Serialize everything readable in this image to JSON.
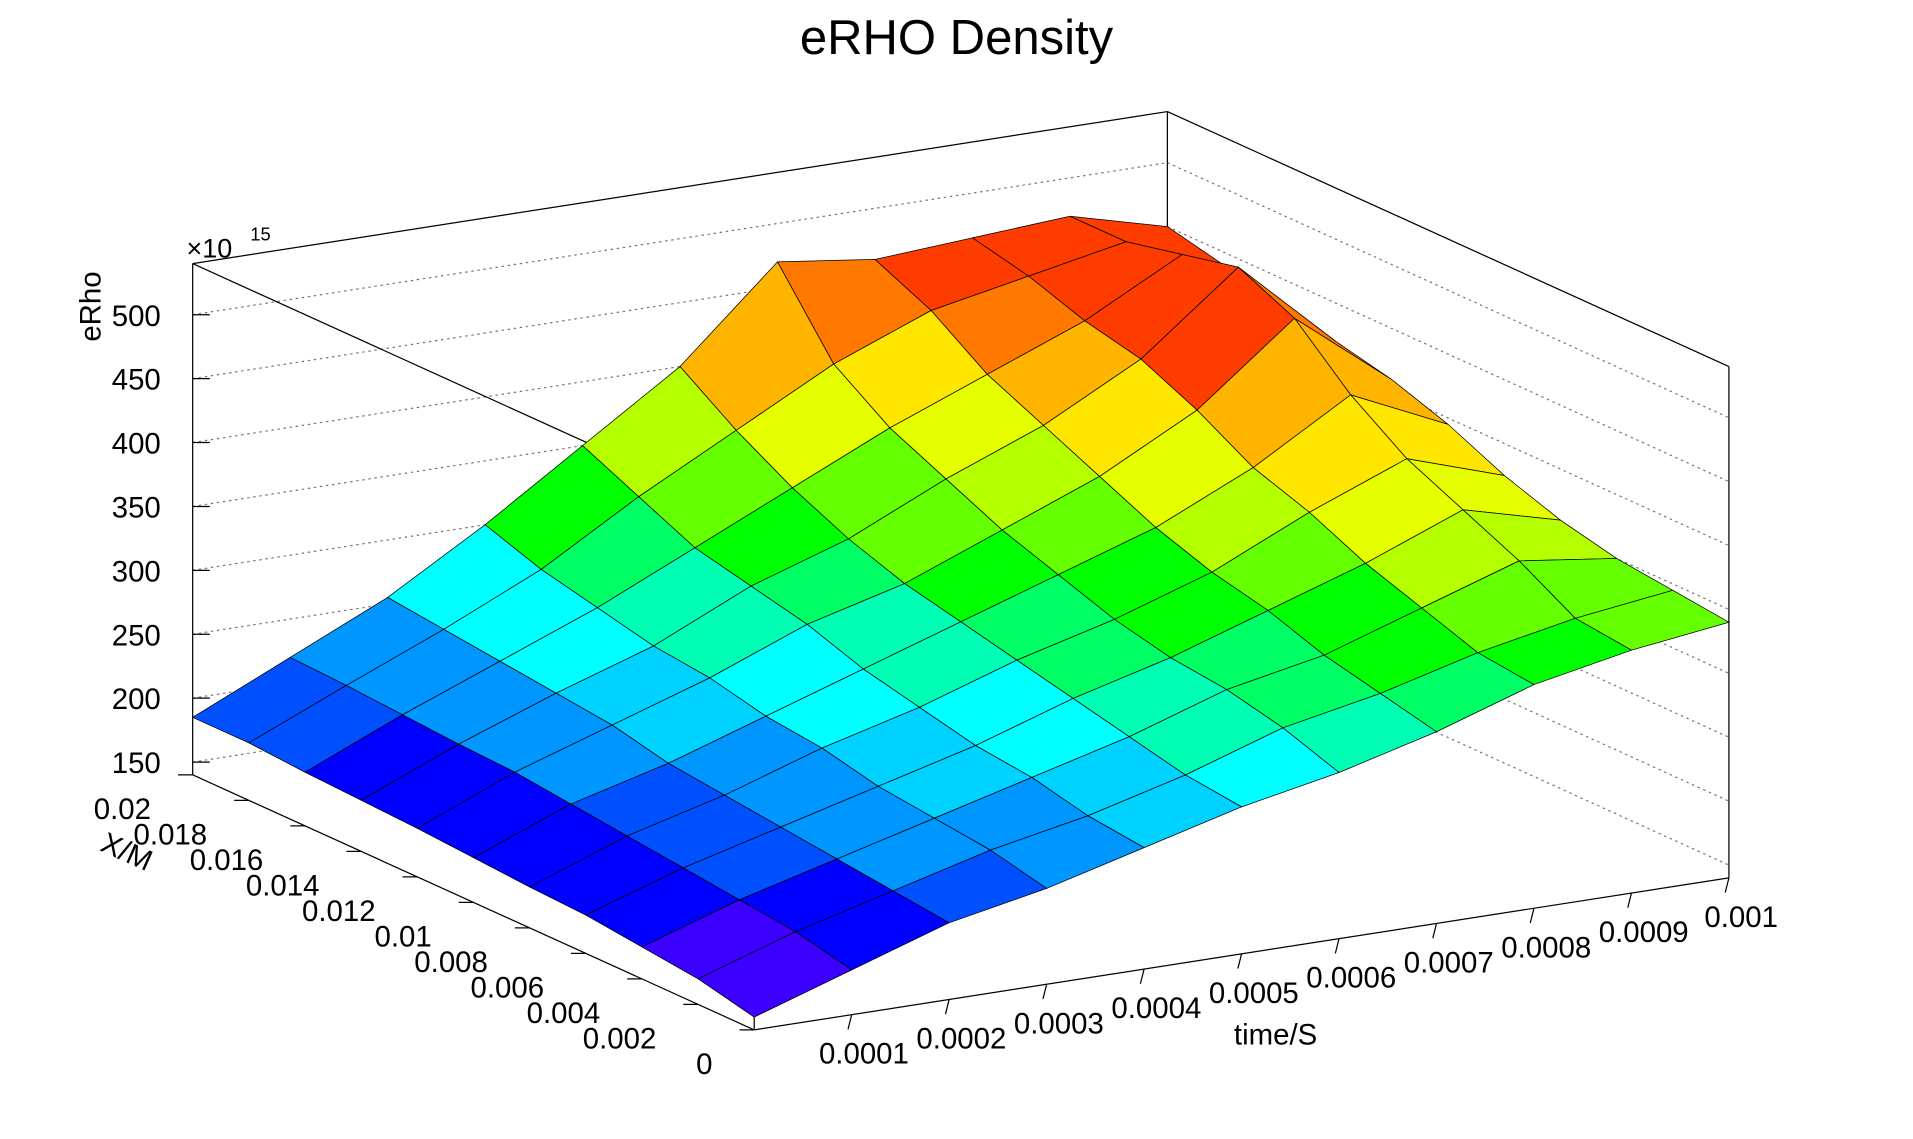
{
  "chart_data": {
    "type": "surface",
    "title": "eRHO Density",
    "xlabel": "time/S",
    "ylabel": "X/M",
    "zlabel": "eRho",
    "zscale_base": "×10",
    "zscale_exponent": "15",
    "x": [
      0,
      0.0001,
      0.0002,
      0.0003,
      0.0004,
      0.0005,
      0.0006,
      0.0007,
      0.0008,
      0.0009,
      0.001
    ],
    "y": [
      0,
      0.002,
      0.004,
      0.006,
      0.008,
      0.01,
      0.012,
      0.014,
      0.016,
      0.018,
      0.02
    ],
    "z": [
      [
        150,
        175,
        200,
        215,
        235,
        255,
        270,
        290,
        315,
        330,
        340
      ],
      [
        160,
        185,
        205,
        225,
        240,
        260,
        285,
        300,
        320,
        335,
        345
      ],
      [
        165,
        190,
        210,
        230,
        250,
        270,
        295,
        310,
        335,
        360,
        350
      ],
      [
        170,
        195,
        215,
        235,
        255,
        280,
        300,
        325,
        350,
        380,
        360
      ],
      [
        172,
        200,
        220,
        245,
        265,
        290,
        310,
        335,
        370,
        400,
        375
      ],
      [
        175,
        205,
        225,
        250,
        275,
        300,
        325,
        350,
        385,
        430,
        395
      ],
      [
        178,
        210,
        235,
        260,
        290,
        310,
        340,
        370,
        410,
        470,
        410
      ],
      [
        180,
        212,
        240,
        265,
        300,
        325,
        360,
        390,
        430,
        490,
        420
      ],
      [
        182,
        215,
        245,
        275,
        310,
        345,
        380,
        410,
        440,
        480,
        430
      ],
      [
        185,
        218,
        250,
        285,
        330,
        370,
        410,
        440,
        455,
        470,
        440
      ],
      [
        185,
        220,
        255,
        300,
        350,
        400,
        470,
        460,
        465,
        470,
        450
      ]
    ],
    "xlim": [
      0,
      0.001
    ],
    "xticks": [
      0.0001,
      0.0002,
      0.0003,
      0.0004,
      0.0005,
      0.0006,
      0.0007,
      0.0008,
      0.0009,
      0.001
    ],
    "ylim": [
      0,
      0.02
    ],
    "yticks": [
      0,
      0.002,
      0.004,
      0.006,
      0.008,
      0.01,
      0.012,
      0.014,
      0.016,
      0.018,
      0.02
    ],
    "zlim": [
      140,
      540
    ],
    "zticks": [
      150,
      200,
      250,
      300,
      350,
      400,
      450,
      500
    ],
    "grid": true,
    "palette": [
      "#7a00e6",
      "#3b00ff",
      "#0000ff",
      "#0050ff",
      "#0096ff",
      "#00d2ff",
      "#00ffff",
      "#00ffb4",
      "#00ff64",
      "#00ff00",
      "#64ff00",
      "#b4ff00",
      "#e6ff00",
      "#ffe600",
      "#ffb400",
      "#ff7800",
      "#ff3c00",
      "#ff0000"
    ]
  }
}
